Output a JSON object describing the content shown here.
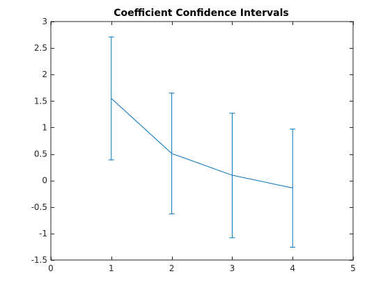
{
  "chart_data": {
    "type": "line",
    "title": "Coefficient Confidence Intervals",
    "xlabel": "",
    "ylabel": "",
    "xlim": [
      0,
      5
    ],
    "ylim": [
      -1.5,
      3
    ],
    "x_ticks": [
      0,
      1,
      2,
      3,
      4,
      5
    ],
    "x_tick_labels": [
      "0",
      "1",
      "2",
      "3",
      "4",
      "5"
    ],
    "y_ticks": [
      -1.5,
      -1,
      -0.5,
      0,
      0.5,
      1,
      1.5,
      2,
      2.5,
      3
    ],
    "y_tick_labels": [
      "-1.5",
      "-1",
      "-0.5",
      "0",
      "0.5",
      "1",
      "1.5",
      "2",
      "2.5",
      "3"
    ],
    "grid": false,
    "box": true,
    "colors": {
      "series": "#0072BD",
      "axes": "#262626"
    },
    "series": [
      {
        "x": [
          1,
          2,
          3,
          4
        ],
        "values": [
          1.55,
          0.51,
          0.1,
          -0.14
        ],
        "lower": [
          0.39,
          -0.63,
          -1.08,
          -1.26
        ],
        "upper": [
          2.71,
          1.65,
          1.27,
          0.97
        ]
      }
    ]
  }
}
